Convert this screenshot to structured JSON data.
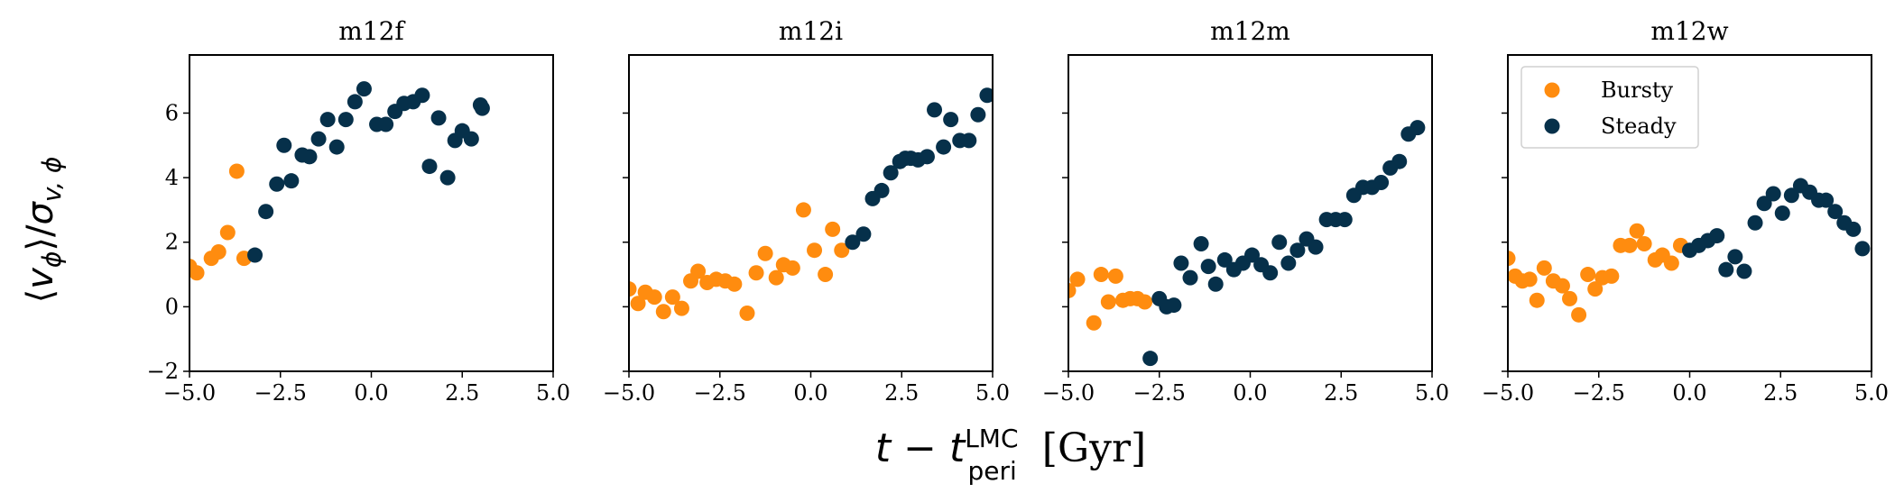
{
  "chart_data": {
    "type": "scatter",
    "ylabel_math": {
      "open": "⟨",
      "v": "v",
      "phi": "ϕ",
      "close": "⟩",
      "slash": "/",
      "sigma": "σ",
      "sub": "v, ϕ"
    },
    "xlabel_math": {
      "t": "t",
      "minus": " − ",
      "t2": "t",
      "sup": "LMC",
      "sub": "peri",
      "unit": " [Gyr]"
    },
    "xlim": [
      -5,
      5
    ],
    "ylim": [
      -2,
      7.8
    ],
    "xticks": [
      "−5.0",
      "−2.5",
      "0.0",
      "2.5",
      "5.0"
    ],
    "xtick_values": [
      -5,
      -2.5,
      0,
      2.5,
      5
    ],
    "yticks": [
      "−2",
      "0",
      "2",
      "4",
      "6"
    ],
    "ytick_values": [
      -2,
      0,
      2,
      4,
      6
    ],
    "legend": {
      "location": "upper-left",
      "panel": "m12w",
      "entries": [
        "Bursty",
        "Steady"
      ]
    },
    "colors": {
      "Bursty": "#ff8c0f",
      "Steady": "#06304a"
    },
    "panels": [
      {
        "title": "m12f",
        "series": [
          {
            "name": "Bursty",
            "points": [
              [
                -5.0,
                1.25
              ],
              [
                -4.8,
                1.05
              ],
              [
                -4.4,
                1.5
              ],
              [
                -4.2,
                1.7
              ],
              [
                -3.95,
                2.3
              ],
              [
                -3.7,
                4.2
              ],
              [
                -3.5,
                1.5
              ]
            ]
          },
          {
            "name": "Steady",
            "points": [
              [
                -3.2,
                1.6
              ],
              [
                -2.9,
                2.95
              ],
              [
                -2.6,
                3.8
              ],
              [
                -2.4,
                5.0
              ],
              [
                -2.2,
                3.9
              ],
              [
                -1.9,
                4.7
              ],
              [
                -1.7,
                4.65
              ],
              [
                -1.45,
                5.2
              ],
              [
                -1.2,
                5.8
              ],
              [
                -0.95,
                4.95
              ],
              [
                -0.7,
                5.8
              ],
              [
                -0.45,
                6.35
              ],
              [
                -0.2,
                6.75
              ],
              [
                0.15,
                5.65
              ],
              [
                0.4,
                5.65
              ],
              [
                0.65,
                6.05
              ],
              [
                0.9,
                6.3
              ],
              [
                1.15,
                6.35
              ],
              [
                1.4,
                6.55
              ],
              [
                1.6,
                4.35
              ],
              [
                1.85,
                5.85
              ],
              [
                2.1,
                4.0
              ],
              [
                2.3,
                5.15
              ],
              [
                2.5,
                5.45
              ],
              [
                2.75,
                5.2
              ],
              [
                3.0,
                6.25
              ],
              [
                3.05,
                6.15
              ]
            ]
          }
        ]
      },
      {
        "title": "m12i",
        "series": [
          {
            "name": "Bursty",
            "points": [
              [
                -5.0,
                0.55
              ],
              [
                -4.75,
                0.1
              ],
              [
                -4.55,
                0.45
              ],
              [
                -4.3,
                0.3
              ],
              [
                -4.05,
                -0.15
              ],
              [
                -3.8,
                0.3
              ],
              [
                -3.55,
                -0.05
              ],
              [
                -3.3,
                0.8
              ],
              [
                -3.1,
                1.1
              ],
              [
                -2.85,
                0.75
              ],
              [
                -2.6,
                0.85
              ],
              [
                -2.35,
                0.8
              ],
              [
                -2.1,
                0.7
              ],
              [
                -1.75,
                -0.2
              ],
              [
                -1.5,
                1.05
              ],
              [
                -1.25,
                1.65
              ],
              [
                -0.95,
                0.9
              ],
              [
                -0.75,
                1.3
              ],
              [
                -0.5,
                1.2
              ],
              [
                -0.2,
                3.0
              ],
              [
                0.1,
                1.75
              ],
              [
                0.4,
                1.0
              ],
              [
                0.6,
                2.4
              ],
              [
                0.85,
                1.75
              ]
            ]
          },
          {
            "name": "Steady",
            "points": [
              [
                1.15,
                2.0
              ],
              [
                1.45,
                2.25
              ],
              [
                1.7,
                3.35
              ],
              [
                1.95,
                3.6
              ],
              [
                2.2,
                4.15
              ],
              [
                2.45,
                4.5
              ],
              [
                2.6,
                4.6
              ],
              [
                2.75,
                4.6
              ],
              [
                2.95,
                4.55
              ],
              [
                3.2,
                4.65
              ],
              [
                3.4,
                6.1
              ],
              [
                3.65,
                4.95
              ],
              [
                3.85,
                5.8
              ],
              [
                4.1,
                5.15
              ],
              [
                4.35,
                5.15
              ],
              [
                4.6,
                5.95
              ],
              [
                4.85,
                6.55
              ]
            ]
          }
        ]
      },
      {
        "title": "m12m",
        "series": [
          {
            "name": "Bursty",
            "points": [
              [
                -5.0,
                0.5
              ],
              [
                -4.75,
                0.85
              ],
              [
                -4.3,
                -0.5
              ],
              [
                -4.1,
                1.0
              ],
              [
                -3.9,
                0.15
              ],
              [
                -3.7,
                0.95
              ],
              [
                -3.5,
                0.2
              ],
              [
                -3.3,
                0.25
              ],
              [
                -3.1,
                0.25
              ],
              [
                -2.9,
                0.15
              ]
            ]
          },
          {
            "name": "Steady",
            "points": [
              [
                -2.75,
                -1.6
              ],
              [
                -2.5,
                0.25
              ],
              [
                -2.3,
                0.0
              ],
              [
                -2.1,
                0.05
              ],
              [
                -1.9,
                1.35
              ],
              [
                -1.65,
                0.9
              ],
              [
                -1.35,
                1.95
              ],
              [
                -1.15,
                1.25
              ],
              [
                -0.95,
                0.7
              ],
              [
                -0.7,
                1.45
              ],
              [
                -0.45,
                1.15
              ],
              [
                -0.2,
                1.35
              ],
              [
                0.05,
                1.6
              ],
              [
                0.3,
                1.3
              ],
              [
                0.55,
                1.05
              ],
              [
                0.8,
                2.0
              ],
              [
                1.05,
                1.35
              ],
              [
                1.3,
                1.75
              ],
              [
                1.55,
                2.1
              ],
              [
                1.8,
                1.85
              ],
              [
                2.1,
                2.7
              ],
              [
                2.35,
                2.7
              ],
              [
                2.6,
                2.7
              ],
              [
                2.85,
                3.45
              ],
              [
                3.1,
                3.7
              ],
              [
                3.35,
                3.7
              ],
              [
                3.6,
                3.85
              ],
              [
                3.85,
                4.3
              ],
              [
                4.1,
                4.5
              ],
              [
                4.35,
                5.35
              ],
              [
                4.6,
                5.55
              ]
            ]
          }
        ]
      },
      {
        "title": "m12w",
        "series": [
          {
            "name": "Bursty",
            "points": [
              [
                -5.0,
                1.5
              ],
              [
                -4.8,
                0.95
              ],
              [
                -4.6,
                0.8
              ],
              [
                -4.4,
                0.85
              ],
              [
                -4.2,
                0.2
              ],
              [
                -4.0,
                1.2
              ],
              [
                -3.75,
                0.8
              ],
              [
                -3.5,
                0.65
              ],
              [
                -3.3,
                0.25
              ],
              [
                -3.05,
                -0.25
              ],
              [
                -2.8,
                1.0
              ],
              [
                -2.6,
                0.55
              ],
              [
                -2.4,
                0.9
              ],
              [
                -2.15,
                0.95
              ],
              [
                -1.9,
                1.9
              ],
              [
                -1.65,
                1.9
              ],
              [
                -1.45,
                2.35
              ],
              [
                -1.25,
                1.95
              ],
              [
                -0.95,
                1.45
              ],
              [
                -0.75,
                1.6
              ],
              [
                -0.5,
                1.35
              ],
              [
                -0.25,
                1.9
              ]
            ]
          },
          {
            "name": "Steady",
            "points": [
              [
                0.0,
                1.75
              ],
              [
                0.25,
                1.9
              ],
              [
                0.5,
                2.05
              ],
              [
                0.75,
                2.2
              ],
              [
                1.0,
                1.15
              ],
              [
                1.25,
                1.55
              ],
              [
                1.5,
                1.1
              ],
              [
                1.8,
                2.6
              ],
              [
                2.05,
                3.2
              ],
              [
                2.3,
                3.5
              ],
              [
                2.55,
                2.9
              ],
              [
                2.8,
                3.45
              ],
              [
                3.05,
                3.75
              ],
              [
                3.3,
                3.55
              ],
              [
                3.55,
                3.3
              ],
              [
                3.75,
                3.3
              ],
              [
                4.0,
                2.95
              ],
              [
                4.25,
                2.6
              ],
              [
                4.5,
                2.4
              ],
              [
                4.75,
                1.8
              ]
            ]
          }
        ]
      }
    ]
  }
}
